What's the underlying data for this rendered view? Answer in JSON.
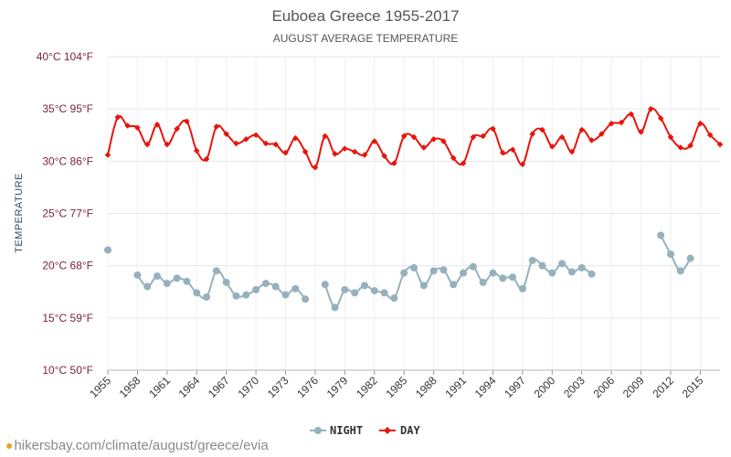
{
  "header": {
    "title": "Euboea Greece 1955-2017",
    "subtitle": "AUGUST AVERAGE TEMPERATURE"
  },
  "footer": {
    "url": "hikersbay.com/climate/august/greece/evia"
  },
  "chart_data": {
    "type": "line",
    "ylabel": "TEMPERATURE",
    "ylim": [
      10,
      40
    ],
    "yticks": [
      {
        "value": 10,
        "label": "10°C 50°F"
      },
      {
        "value": 15,
        "label": "15°C 59°F"
      },
      {
        "value": 20,
        "label": "20°C 68°F"
      },
      {
        "value": 25,
        "label": "25°C 77°F"
      },
      {
        "value": 30,
        "label": "30°C 86°F"
      },
      {
        "value": 35,
        "label": "35°C 95°F"
      },
      {
        "value": 40,
        "label": "40°C 104°F"
      }
    ],
    "xlim": [
      1955,
      2017
    ],
    "xticks": [
      1955,
      1958,
      1961,
      1964,
      1967,
      1970,
      1973,
      1976,
      1979,
      1982,
      1985,
      1988,
      1991,
      1994,
      1997,
      2000,
      2003,
      2006,
      2009,
      2012,
      2015
    ],
    "grid": true,
    "legend_position": "bottom-center",
    "series": [
      {
        "name": "NIGHT",
        "color": "#96b1bd",
        "x": [
          1955,
          1958,
          1959,
          1960,
          1961,
          1962,
          1963,
          1964,
          1965,
          1966,
          1967,
          1968,
          1969,
          1970,
          1971,
          1972,
          1973,
          1974,
          1975,
          1977,
          1978,
          1979,
          1980,
          1981,
          1982,
          1983,
          1984,
          1985,
          1986,
          1987,
          1988,
          1989,
          1990,
          1991,
          1992,
          1993,
          1994,
          1995,
          1996,
          1997,
          1998,
          1999,
          2000,
          2001,
          2002,
          2003,
          2004,
          2011,
          2012,
          2013,
          2014
        ],
        "values": [
          21.5,
          19.1,
          18.0,
          19.0,
          18.3,
          18.8,
          18.5,
          17.4,
          17.0,
          19.5,
          18.4,
          17.1,
          17.2,
          17.7,
          18.3,
          18.0,
          17.2,
          17.8,
          16.8,
          18.2,
          16.0,
          17.7,
          17.4,
          18.1,
          17.6,
          17.4,
          16.9,
          19.3,
          19.8,
          18.1,
          19.5,
          19.6,
          18.2,
          19.3,
          19.9,
          18.4,
          19.3,
          18.8,
          18.9,
          17.8,
          20.5,
          20.0,
          19.3,
          20.2,
          19.4,
          19.8,
          19.2,
          22.9,
          21.1,
          19.5,
          20.7
        ],
        "segments": [
          [
            1955,
            1955
          ],
          [
            1958,
            1975
          ],
          [
            1977,
            2004
          ],
          [
            2011,
            2014
          ]
        ]
      },
      {
        "name": "DAY",
        "color": "#e8140c",
        "x": [
          1955,
          1956,
          1957,
          1958,
          1959,
          1960,
          1961,
          1962,
          1963,
          1964,
          1965,
          1966,
          1967,
          1968,
          1969,
          1970,
          1971,
          1972,
          1973,
          1974,
          1975,
          1976,
          1977,
          1978,
          1979,
          1980,
          1981,
          1982,
          1983,
          1984,
          1985,
          1986,
          1987,
          1988,
          1989,
          1990,
          1991,
          1992,
          1993,
          1994,
          1995,
          1996,
          1997,
          1998,
          1999,
          2000,
          2001,
          2002,
          2003,
          2004,
          2005,
          2006,
          2007,
          2008,
          2009,
          2010,
          2011,
          2012,
          2013,
          2014,
          2015,
          2016,
          2017
        ],
        "values": [
          30.6,
          34.2,
          33.4,
          33.2,
          31.6,
          33.5,
          31.6,
          33.1,
          33.8,
          31.0,
          30.2,
          33.3,
          32.6,
          31.7,
          32.1,
          32.5,
          31.7,
          31.6,
          30.8,
          32.2,
          30.9,
          29.4,
          32.4,
          30.7,
          31.2,
          30.9,
          30.6,
          31.9,
          30.5,
          29.8,
          32.4,
          32.3,
          31.3,
          32.1,
          31.9,
          30.3,
          29.8,
          32.3,
          32.4,
          33.1,
          30.8,
          31.1,
          29.7,
          32.6,
          33.0,
          31.4,
          32.3,
          30.9,
          33.0,
          32.0,
          32.6,
          33.6,
          33.7,
          34.5,
          32.8,
          35.0,
          34.1,
          32.3,
          31.3,
          31.5,
          33.6,
          32.5,
          31.6
        ]
      }
    ]
  }
}
